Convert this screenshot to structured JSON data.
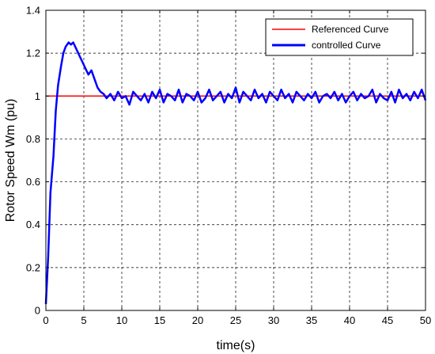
{
  "chart_data": {
    "type": "line",
    "title": "",
    "xlabel": "time(s)",
    "ylabel": "Rotor Speed Wm (pu)",
    "xlim": [
      0,
      50
    ],
    "ylim": [
      0,
      1.4
    ],
    "x_ticks": [
      0,
      5,
      10,
      15,
      20,
      25,
      30,
      35,
      40,
      45,
      50
    ],
    "y_ticks": [
      0,
      0.2,
      0.4,
      0.6,
      0.8,
      1,
      1.2,
      1.4
    ],
    "grid": true,
    "grid_style": "dashed",
    "legend_position": "top-right",
    "series": [
      {
        "name": "Referenced Curve",
        "color": "#ff0000",
        "x": [
          0,
          50
        ],
        "y": [
          1,
          1
        ]
      },
      {
        "name": "controlled Curve",
        "color": "#0000ff",
        "x": [
          0,
          0.3,
          0.6,
          1.0,
          1.3,
          1.6,
          2.0,
          2.3,
          2.6,
          3.0,
          3.3,
          3.6,
          4.0,
          4.4,
          4.8,
          5.2,
          5.6,
          6.0,
          6.4,
          6.8,
          7.2,
          7.6,
          8.0,
          8.5,
          9.0,
          9.5,
          10,
          10.5,
          11,
          11.5,
          12,
          12.5,
          13,
          13.5,
          14,
          14.5,
          15,
          15.5,
          16,
          16.5,
          17,
          17.5,
          18,
          18.5,
          19,
          19.5,
          20,
          20.5,
          21,
          21.5,
          22,
          22.5,
          23,
          23.5,
          24,
          24.5,
          25,
          25.5,
          26,
          26.5,
          27,
          27.5,
          28,
          28.5,
          29,
          29.5,
          30,
          30.5,
          31,
          31.5,
          32,
          32.5,
          33,
          33.5,
          34,
          34.5,
          35,
          35.5,
          36,
          36.5,
          37,
          37.5,
          38,
          38.5,
          39,
          39.5,
          40,
          40.5,
          41,
          41.5,
          42,
          42.5,
          43,
          43.5,
          44,
          44.5,
          45,
          45.5,
          46,
          46.5,
          47,
          47.5,
          48,
          48.5,
          49,
          49.5,
          50
        ],
        "y": [
          0.03,
          0.25,
          0.55,
          0.72,
          0.93,
          1.05,
          1.14,
          1.2,
          1.23,
          1.25,
          1.24,
          1.25,
          1.22,
          1.19,
          1.16,
          1.13,
          1.1,
          1.12,
          1.08,
          1.04,
          1.02,
          1.01,
          0.99,
          1.01,
          0.98,
          1.02,
          0.99,
          1.0,
          0.96,
          1.02,
          1.0,
          0.98,
          1.01,
          0.97,
          1.02,
          0.99,
          1.03,
          0.97,
          1.01,
          1.0,
          0.98,
          1.03,
          0.97,
          1.01,
          1.0,
          0.98,
          1.02,
          0.97,
          0.99,
          1.03,
          0.98,
          1.0,
          1.02,
          0.97,
          1.01,
          0.99,
          1.04,
          0.97,
          1.02,
          1.0,
          0.98,
          1.03,
          0.99,
          1.01,
          0.97,
          1.02,
          1.0,
          0.98,
          1.03,
          0.99,
          1.01,
          0.97,
          1.02,
          1.0,
          0.98,
          1.01,
          0.99,
          1.02,
          0.97,
          1.0,
          1.01,
          0.99,
          1.02,
          0.98,
          1.01,
          0.97,
          1.0,
          1.02,
          0.98,
          1.01,
          0.99,
          1.0,
          1.03,
          0.97,
          1.01,
          0.99,
          0.98,
          1.02,
          0.97,
          1.03,
          0.99,
          1.01,
          0.98,
          1.02,
          0.99,
          1.03,
          0.98
        ]
      }
    ]
  }
}
